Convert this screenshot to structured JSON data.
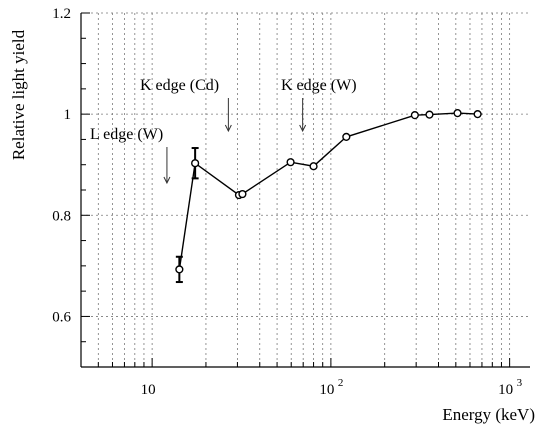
{
  "chart_data": {
    "type": "line",
    "title": "",
    "xlabel": "Energy (keV)",
    "ylabel": "Relative light yield",
    "x_scale": "log",
    "xlim": [
      4,
      1300
    ],
    "ylim": [
      0.5,
      1.2
    ],
    "grid": true,
    "x_ticks": [
      {
        "value": 10,
        "base": "10",
        "exp": ""
      },
      {
        "value": 100,
        "base": "10",
        "exp": "2"
      },
      {
        "value": 1000,
        "base": "10",
        "exp": "3"
      }
    ],
    "y_ticks": [
      {
        "value": 0.6,
        "label": "0.6"
      },
      {
        "value": 0.8,
        "label": "0.8"
      },
      {
        "value": 1.0,
        "label": "1"
      },
      {
        "value": 1.2,
        "label": "1.2"
      }
    ],
    "series": [
      {
        "x": [
          14.2,
          17.4,
          30.6,
          32.0,
          59.5,
          80.0,
          122,
          295,
          356,
          511,
          662
        ],
        "y": [
          0.693,
          0.903,
          0.84,
          0.842,
          0.905,
          0.897,
          0.955,
          0.998,
          0.999,
          1.002,
          1.0
        ],
        "errors": [
          0.025,
          0.03,
          0.0,
          0.0,
          0.0,
          0.0,
          0.0,
          0.0,
          0.0,
          0.0,
          0.0
        ]
      }
    ],
    "annotations": [
      {
        "text": "L edge (W)",
        "x": 12.1
      },
      {
        "text": "K edge (Cd)",
        "x": 26.7
      },
      {
        "text": "K edge (W)",
        "x": 69.5
      }
    ]
  }
}
